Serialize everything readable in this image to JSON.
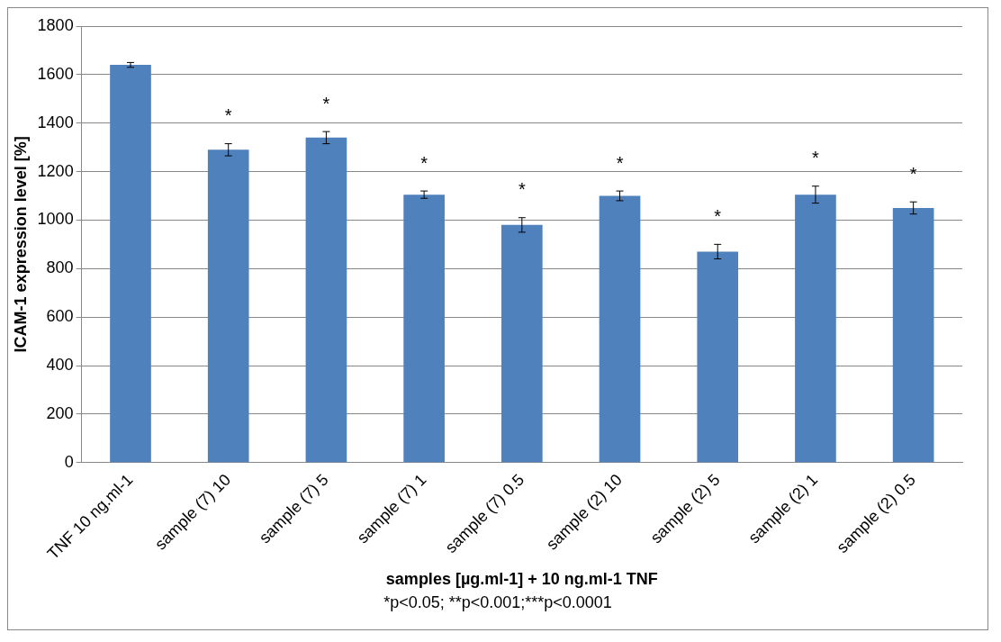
{
  "chart_data": {
    "type": "bar",
    "xlabel": "samples [µg.ml-1] + 10 ng.ml-1 TNF",
    "ylabel": "ICAM-1 expression level [%]",
    "categories": [
      "TNF 10 ng.ml-1",
      "sample (7) 10",
      "sample (7) 5",
      "sample (7) 1",
      "sample (7) 0.5",
      "sample (2) 10",
      "sample (2) 5",
      "sample (2) 1",
      "sample (2) 0.5"
    ],
    "values": [
      1640,
      1290,
      1340,
      1105,
      980,
      1100,
      870,
      1105,
      1050
    ],
    "errors": [
      10,
      25,
      25,
      15,
      30,
      20,
      30,
      35,
      25
    ],
    "color": "#4f81bd",
    "ylim": [
      0,
      1800
    ],
    "yticks": [
      0,
      200,
      400,
      600,
      800,
      1000,
      1200,
      1400,
      1600,
      1800
    ],
    "grid": "y",
    "legend": false,
    "annotations": [
      {
        "text": "*",
        "x": "sample (7) 10",
        "y": 1290
      },
      {
        "text": "*",
        "x": "sample (7) 5",
        "y": 1340
      },
      {
        "text": "*",
        "x": "sample (7) 1",
        "y": 1105
      },
      {
        "text": "*",
        "x": "sample (7) 0.5",
        "y": 980
      },
      {
        "text": "*",
        "x": "sample (2) 10",
        "y": 1100
      },
      {
        "text": "*",
        "x": "sample (2) 5",
        "y": 870
      },
      {
        "text": "*",
        "x": "sample (2) 1",
        "y": 1105
      },
      {
        "text": "*",
        "x": "sample (2) 0.5",
        "y": 1050
      },
      "*p<0.05; **p<0.001;***p<0.0001"
    ]
  }
}
